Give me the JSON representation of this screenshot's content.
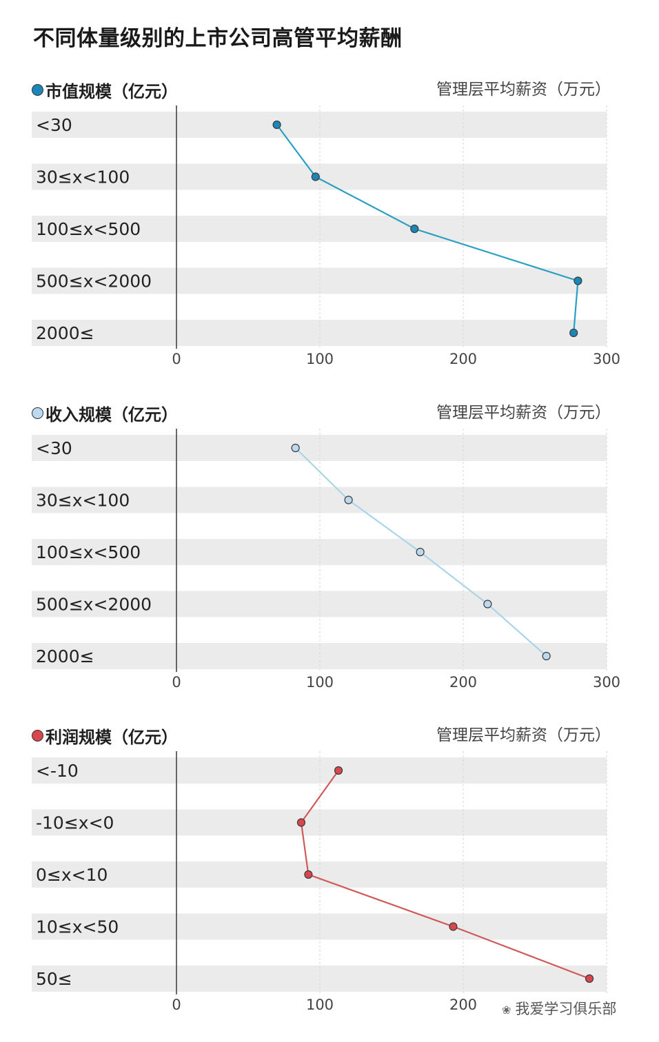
{
  "title": "不同体量级别的上市公司高管平均薪酬",
  "watermark": "我爱学习俱乐部",
  "chart_data": [
    {
      "type": "line",
      "name": "市值规模（亿元）",
      "unit_label": "管理层平均薪资（万元）",
      "color": "#2a9fc4",
      "dot_fill": "#1b86b8",
      "categories": [
        "<30",
        "30≤x<100",
        "100≤x<500",
        "500≤x<2000",
        "2000≤"
      ],
      "values": [
        70,
        97,
        166,
        280,
        277
      ],
      "xlim": [
        0,
        300
      ],
      "xticks": [
        "0",
        "100",
        "200",
        "300"
      ],
      "grid": true
    },
    {
      "type": "line",
      "name": "收入规模（亿元）",
      "unit_label": "管理层平均薪资（万元）",
      "color": "#a9d4ea",
      "dot_fill": "#bcd9ef",
      "categories": [
        "<30",
        "30≤x<100",
        "100≤x<500",
        "500≤x<2000",
        "2000≤"
      ],
      "values": [
        83,
        120,
        170,
        217,
        258
      ],
      "xlim": [
        0,
        300
      ],
      "xticks": [
        "0",
        "100",
        "200",
        "300"
      ],
      "grid": true
    },
    {
      "type": "line",
      "name": "利润规模（亿元）",
      "unit_label": "管理层平均薪资（万元）",
      "color": "#cf5a5a",
      "dot_fill": "#d9474e",
      "categories": [
        "<-10",
        "-10≤x<0",
        "0≤x<10",
        "10≤x<50",
        "50≤"
      ],
      "values": [
        113,
        87,
        92,
        193,
        288
      ],
      "xlim": [
        0,
        300
      ],
      "xticks": [
        "0",
        "100",
        "200"
      ],
      "grid": true
    }
  ]
}
